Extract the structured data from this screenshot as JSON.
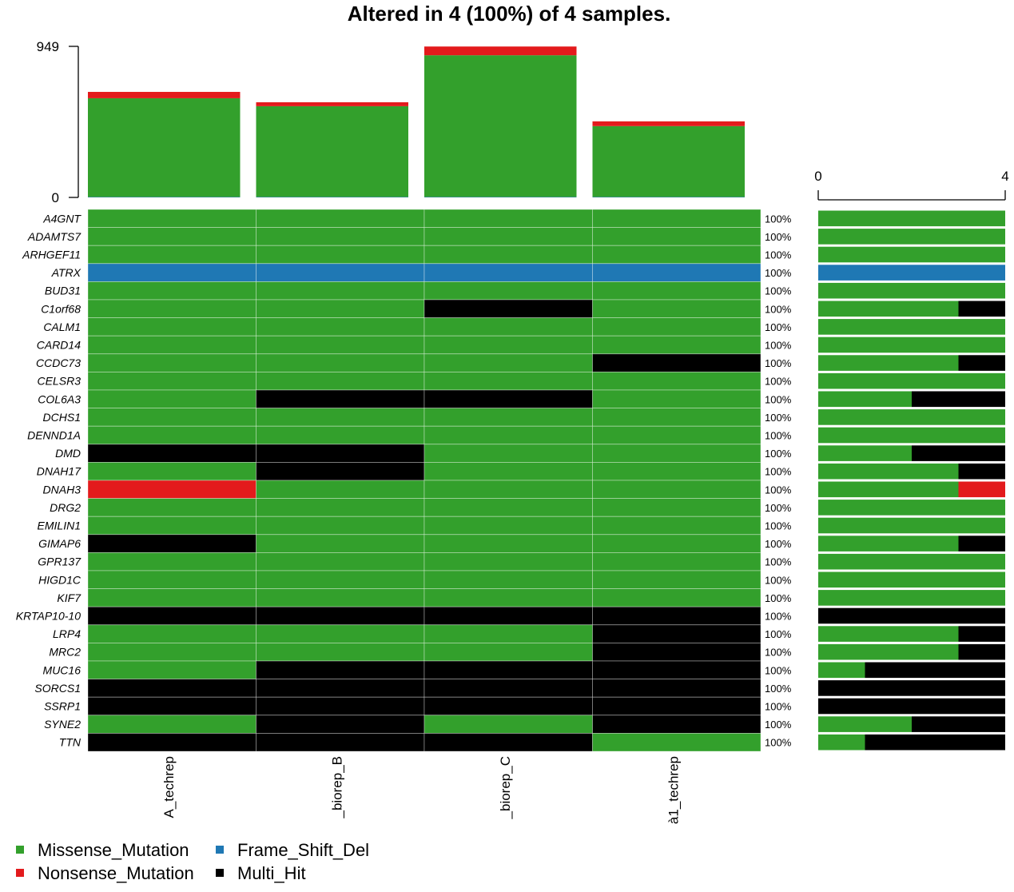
{
  "chart_data": {
    "type": "heatmap",
    "title": "Altered in 4 (100%) of 4 samples.",
    "top_axis": {
      "ticks": [
        "0",
        "949"
      ],
      "max": 949
    },
    "right_axis": {
      "ticks": [
        "0",
        "4"
      ],
      "max": 4
    },
    "samples": [
      "A_techrep",
      "_biorep_B",
      "_biorep_C",
      "à1_techrep"
    ],
    "tmb": [
      {
        "Missense_Mutation": 620,
        "Nonsense_Mutation": 40,
        "Frame_Shift_Del": 3
      },
      {
        "Missense_Mutation": 570,
        "Nonsense_Mutation": 25,
        "Frame_Shift_Del": 3
      },
      {
        "Missense_Mutation": 890,
        "Nonsense_Mutation": 55,
        "Frame_Shift_Del": 3
      },
      {
        "Missense_Mutation": 445,
        "Nonsense_Mutation": 30,
        "Frame_Shift_Del": 3
      }
    ],
    "classes": [
      {
        "name": "Missense_Mutation",
        "color": "#33a02c"
      },
      {
        "name": "Nonsense_Mutation",
        "color": "#e31a1c"
      },
      {
        "name": "Frame_Shift_Del",
        "color": "#1f78b4"
      },
      {
        "name": "Multi_Hit",
        "color": "#000000"
      }
    ],
    "genes": [
      {
        "name": "A4GNT",
        "pct": "100%",
        "cells": [
          "Missense_Mutation",
          "Missense_Mutation",
          "Missense_Mutation",
          "Missense_Mutation"
        ]
      },
      {
        "name": "ADAMTS7",
        "pct": "100%",
        "cells": [
          "Missense_Mutation",
          "Missense_Mutation",
          "Missense_Mutation",
          "Missense_Mutation"
        ]
      },
      {
        "name": "ARHGEF11",
        "pct": "100%",
        "cells": [
          "Missense_Mutation",
          "Missense_Mutation",
          "Missense_Mutation",
          "Missense_Mutation"
        ]
      },
      {
        "name": "ATRX",
        "pct": "100%",
        "cells": [
          "Frame_Shift_Del",
          "Frame_Shift_Del",
          "Frame_Shift_Del",
          "Frame_Shift_Del"
        ]
      },
      {
        "name": "BUD31",
        "pct": "100%",
        "cells": [
          "Missense_Mutation",
          "Missense_Mutation",
          "Missense_Mutation",
          "Missense_Mutation"
        ]
      },
      {
        "name": "C1orf68",
        "pct": "100%",
        "cells": [
          "Missense_Mutation",
          "Missense_Mutation",
          "Multi_Hit",
          "Missense_Mutation"
        ]
      },
      {
        "name": "CALM1",
        "pct": "100%",
        "cells": [
          "Missense_Mutation",
          "Missense_Mutation",
          "Missense_Mutation",
          "Missense_Mutation"
        ]
      },
      {
        "name": "CARD14",
        "pct": "100%",
        "cells": [
          "Missense_Mutation",
          "Missense_Mutation",
          "Missense_Mutation",
          "Missense_Mutation"
        ]
      },
      {
        "name": "CCDC73",
        "pct": "100%",
        "cells": [
          "Missense_Mutation",
          "Missense_Mutation",
          "Missense_Mutation",
          "Multi_Hit"
        ]
      },
      {
        "name": "CELSR3",
        "pct": "100%",
        "cells": [
          "Missense_Mutation",
          "Missense_Mutation",
          "Missense_Mutation",
          "Missense_Mutation"
        ]
      },
      {
        "name": "COL6A3",
        "pct": "100%",
        "cells": [
          "Missense_Mutation",
          "Multi_Hit",
          "Multi_Hit",
          "Missense_Mutation"
        ]
      },
      {
        "name": "DCHS1",
        "pct": "100%",
        "cells": [
          "Missense_Mutation",
          "Missense_Mutation",
          "Missense_Mutation",
          "Missense_Mutation"
        ]
      },
      {
        "name": "DENND1A",
        "pct": "100%",
        "cells": [
          "Missense_Mutation",
          "Missense_Mutation",
          "Missense_Mutation",
          "Missense_Mutation"
        ]
      },
      {
        "name": "DMD",
        "pct": "100%",
        "cells": [
          "Multi_Hit",
          "Multi_Hit",
          "Missense_Mutation",
          "Missense_Mutation"
        ]
      },
      {
        "name": "DNAH17",
        "pct": "100%",
        "cells": [
          "Missense_Mutation",
          "Multi_Hit",
          "Missense_Mutation",
          "Missense_Mutation"
        ]
      },
      {
        "name": "DNAH3",
        "pct": "100%",
        "cells": [
          "Nonsense_Mutation",
          "Missense_Mutation",
          "Missense_Mutation",
          "Missense_Mutation"
        ]
      },
      {
        "name": "DRG2",
        "pct": "100%",
        "cells": [
          "Missense_Mutation",
          "Missense_Mutation",
          "Missense_Mutation",
          "Missense_Mutation"
        ]
      },
      {
        "name": "EMILIN1",
        "pct": "100%",
        "cells": [
          "Missense_Mutation",
          "Missense_Mutation",
          "Missense_Mutation",
          "Missense_Mutation"
        ]
      },
      {
        "name": "GIMAP6",
        "pct": "100%",
        "cells": [
          "Multi_Hit",
          "Missense_Mutation",
          "Missense_Mutation",
          "Missense_Mutation"
        ]
      },
      {
        "name": "GPR137",
        "pct": "100%",
        "cells": [
          "Missense_Mutation",
          "Missense_Mutation",
          "Missense_Mutation",
          "Missense_Mutation"
        ]
      },
      {
        "name": "HIGD1C",
        "pct": "100%",
        "cells": [
          "Missense_Mutation",
          "Missense_Mutation",
          "Missense_Mutation",
          "Missense_Mutation"
        ]
      },
      {
        "name": "KIF7",
        "pct": "100%",
        "cells": [
          "Missense_Mutation",
          "Missense_Mutation",
          "Missense_Mutation",
          "Missense_Mutation"
        ]
      },
      {
        "name": "KRTAP10-10",
        "pct": "100%",
        "cells": [
          "Multi_Hit",
          "Multi_Hit",
          "Multi_Hit",
          "Multi_Hit"
        ]
      },
      {
        "name": "LRP4",
        "pct": "100%",
        "cells": [
          "Missense_Mutation",
          "Missense_Mutation",
          "Missense_Mutation",
          "Multi_Hit"
        ]
      },
      {
        "name": "MRC2",
        "pct": "100%",
        "cells": [
          "Missense_Mutation",
          "Missense_Mutation",
          "Missense_Mutation",
          "Multi_Hit"
        ]
      },
      {
        "name": "MUC16",
        "pct": "100%",
        "cells": [
          "Missense_Mutation",
          "Multi_Hit",
          "Multi_Hit",
          "Multi_Hit"
        ]
      },
      {
        "name": "SORCS1",
        "pct": "100%",
        "cells": [
          "Multi_Hit",
          "Multi_Hit",
          "Multi_Hit",
          "Multi_Hit"
        ]
      },
      {
        "name": "SSRP1",
        "pct": "100%",
        "cells": [
          "Multi_Hit",
          "Multi_Hit",
          "Multi_Hit",
          "Multi_Hit"
        ]
      },
      {
        "name": "SYNE2",
        "pct": "100%",
        "cells": [
          "Missense_Mutation",
          "Multi_Hit",
          "Missense_Mutation",
          "Multi_Hit"
        ]
      },
      {
        "name": "TTN",
        "pct": "100%",
        "cells": [
          "Multi_Hit",
          "Multi_Hit",
          "Multi_Hit",
          "Missense_Mutation"
        ]
      }
    ],
    "legend": [
      "Missense_Mutation",
      "Frame_Shift_Del",
      "Nonsense_Mutation",
      "Multi_Hit"
    ]
  }
}
